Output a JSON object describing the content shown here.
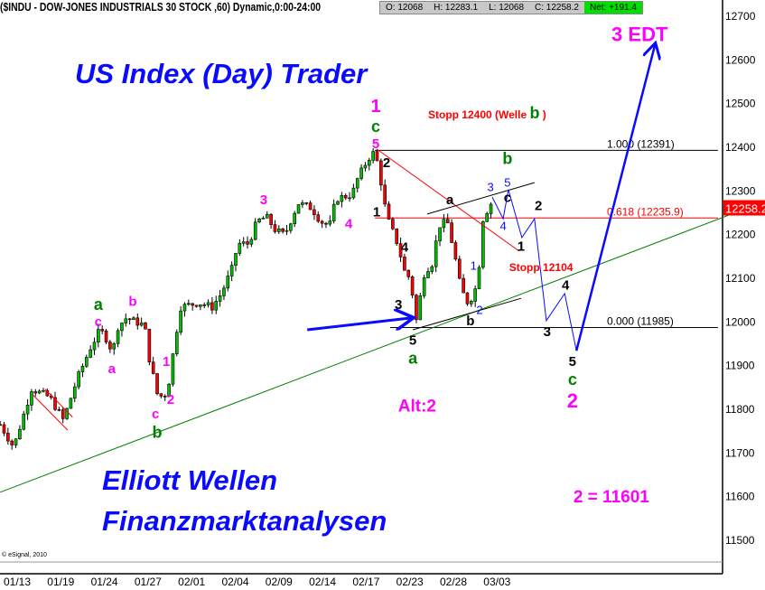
{
  "header": {
    "symbol_title": "($INDU - DOW-JONES INDUSTRIALS 30 STOCK ,60) Dynamic,0:00-24:00",
    "open": "O: 12068",
    "high": "H: 12283.1",
    "low": "L: 12068",
    "close": "C: 12258.2",
    "net": "Net: +191.4"
  },
  "titles": {
    "main": "US Index (Day) Trader",
    "line1": "Elliott Wellen",
    "line2": "Finanzmarktanalysen"
  },
  "copyright": "© eSignal, 2010",
  "colors": {
    "up": "#00c000",
    "down": "#ff0000",
    "trend": "#008000",
    "projection": "#0a0aff",
    "wave_magenta": "#ff00ff",
    "wave_green": "#008000",
    "price_tag": "#ff0000"
  },
  "chart_data": {
    "type": "candlestick",
    "x_tick_labels": [
      "01/13",
      "01/19",
      "01/24",
      "01/27",
      "02/01",
      "02/04",
      "02/09",
      "02/14",
      "02/17",
      "02/23",
      "02/28",
      "03/03"
    ],
    "y_ticks": [
      12700,
      12600,
      12500,
      12400,
      12300,
      12200,
      12100,
      12000,
      11900,
      11800,
      11700,
      11600,
      11500
    ],
    "ylim": [
      11460,
      12730
    ],
    "last_price": "12258.2",
    "price_path": [
      [
        -0.39,
        11763
      ],
      [
        -0.08,
        11711
      ],
      [
        0.33,
        11845
      ],
      [
        0.75,
        11825
      ],
      [
        1.06,
        11773
      ],
      [
        1.37,
        11866
      ],
      [
        1.68,
        11939
      ],
      [
        1.9,
        11980
      ],
      [
        2.05,
        11959
      ],
      [
        2.19,
        11928
      ],
      [
        2.3,
        11986
      ],
      [
        2.5,
        12007
      ],
      [
        2.92,
        11990
      ],
      [
        3.02,
        11918
      ],
      [
        3.23,
        11825
      ],
      [
        3.44,
        11835
      ],
      [
        3.64,
        11970
      ],
      [
        3.75,
        12032
      ],
      [
        4.16,
        12042
      ],
      [
        4.47,
        12032
      ],
      [
        4.68,
        12063
      ],
      [
        4.99,
        12135
      ],
      [
        5.03,
        12177
      ],
      [
        5.3,
        12177
      ],
      [
        5.5,
        12228
      ],
      [
        5.71,
        12239
      ],
      [
        5.92,
        12208
      ],
      [
        6.13,
        12197
      ],
      [
        6.44,
        12270
      ],
      [
        6.75,
        12259
      ],
      [
        6.96,
        12228
      ],
      [
        7.16,
        12218
      ],
      [
        7.31,
        12280
      ],
      [
        7.68,
        12290
      ],
      [
        7.78,
        12321
      ],
      [
        8.05,
        12373
      ],
      [
        8.2,
        12388
      ],
      [
        8.3,
        12342
      ],
      [
        8.47,
        12239
      ],
      [
        8.72,
        12177
      ],
      [
        8.88,
        12114
      ],
      [
        9.03,
        12094
      ],
      [
        9.13,
        11990
      ],
      [
        9.34,
        12114
      ],
      [
        9.54,
        12135
      ],
      [
        9.65,
        12218
      ],
      [
        9.86,
        12228
      ],
      [
        10.02,
        12156
      ],
      [
        10.17,
        12073
      ],
      [
        10.33,
        12042
      ],
      [
        10.48,
        12063
      ],
      [
        10.58,
        12114
      ],
      [
        10.65,
        12228
      ],
      [
        10.8,
        12259
      ],
      [
        10.9,
        12276
      ]
    ],
    "fib_levels": [
      {
        "label": "1.000 (12391)",
        "price": 12391,
        "from": 8.2,
        "color": "#000000"
      },
      {
        "label": "0.618 (12235.9)",
        "price": 12235.9,
        "from": 8.2,
        "color": "#ff0000"
      },
      {
        "label": "0.000 (11985)",
        "price": 11985,
        "from": 8.55,
        "color": "#000000"
      }
    ],
    "lines": [
      {
        "name": "trendline",
        "color": "#008000",
        "width": 1,
        "points": [
          [
            -0.39,
            11608
          ],
          [
            17.14,
            12274
          ]
        ]
      },
      {
        "name": "downtrend-line",
        "color": "#ff0000",
        "width": 1,
        "points": [
          [
            8.24,
            12394
          ],
          [
            11.51,
            12160
          ]
        ]
      },
      {
        "name": "upper-channel-line",
        "color": "#000000",
        "width": 1,
        "points": [
          [
            9.4,
            12245
          ],
          [
            11.86,
            12317
          ]
        ]
      },
      {
        "name": "lower-channel-line",
        "color": "#000000",
        "width": 1,
        "points": [
          [
            9.07,
            11980
          ],
          [
            11.55,
            12052
          ]
        ]
      },
      {
        "name": "left-channel-upper",
        "color": "#ff0000",
        "width": 1,
        "points": [
          [
            0.64,
            11844
          ],
          [
            1.27,
            11780
          ]
        ]
      },
      {
        "name": "left-channel-lower",
        "color": "#ff0000",
        "width": 1,
        "points": [
          [
            0.37,
            11830
          ],
          [
            1.16,
            11750
          ]
        ]
      },
      {
        "name": "projection-path",
        "color": "#0a0aff",
        "width": 1,
        "points": [
          [
            10.89,
            12284
          ],
          [
            11.14,
            12234
          ],
          [
            11.26,
            12301
          ],
          [
            11.57,
            12191
          ],
          [
            11.86,
            12234
          ],
          [
            12.13,
            12001
          ],
          [
            12.55,
            12063
          ],
          [
            12.82,
            11932
          ]
        ]
      },
      {
        "name": "projection-up-arrow",
        "color": "#0a0aff",
        "width": 2.5,
        "arrow": true,
        "points": [
          [
            12.82,
            11932
          ],
          [
            14.62,
            12632
          ]
        ]
      },
      {
        "name": "pointer-arrow",
        "color": "#0a0aff",
        "width": 3,
        "arrow": true,
        "points": [
          [
            6.65,
            11980
          ],
          [
            9.03,
            12007
          ]
        ]
      }
    ],
    "annotations": [
      {
        "text": "a",
        "color": "#008000",
        "x": 1.86,
        "p": 12038,
        "size": 18
      },
      {
        "text": "c",
        "color": "#ff00ff",
        "x": 1.86,
        "p": 12007,
        "size": 15
      },
      {
        "text": "a",
        "color": "#ff00ff",
        "x": 2.17,
        "p": 11891,
        "size": 15
      },
      {
        "text": "b",
        "color": "#ff00ff",
        "x": 2.65,
        "p": 12046,
        "size": 15
      },
      {
        "text": "1",
        "color": "#ff00ff",
        "x": 3.42,
        "p": 11908,
        "size": 15
      },
      {
        "text": "2",
        "color": "#ff00ff",
        "x": 3.52,
        "p": 11821,
        "size": 15
      },
      {
        "text": "c",
        "color": "#ff00ff",
        "x": 3.17,
        "p": 11788,
        "size": 15
      },
      {
        "text": "b",
        "color": "#008000",
        "x": 3.21,
        "p": 11746,
        "size": 18
      },
      {
        "text": "3",
        "color": "#ff00ff",
        "x": 5.65,
        "p": 12278,
        "size": 15
      },
      {
        "text": "4",
        "color": "#ff00ff",
        "x": 7.6,
        "p": 12224,
        "size": 15
      },
      {
        "text": "1",
        "color": "#ff00ff",
        "x": 8.22,
        "p": 12493,
        "size": 20
      },
      {
        "text": "c",
        "color": "#008000",
        "x": 8.22,
        "p": 12450,
        "size": 18
      },
      {
        "text": "5",
        "color": "#ff00ff",
        "x": 8.22,
        "p": 12412,
        "size": 15
      },
      {
        "text": "2",
        "color": "#000000",
        "x": 8.47,
        "p": 12363,
        "size": 15
      },
      {
        "text": "1",
        "color": "#000000",
        "x": 8.24,
        "p": 12251,
        "size": 15
      },
      {
        "text": "4",
        "color": "#000000",
        "x": 8.88,
        "p": 12170,
        "size": 15
      },
      {
        "text": "3",
        "color": "#000000",
        "x": 8.74,
        "p": 12038,
        "size": 15
      },
      {
        "text": "5",
        "color": "#000000",
        "x": 9.07,
        "p": 11957,
        "size": 15
      },
      {
        "text": "a",
        "color": "#008000",
        "x": 9.07,
        "p": 11928,
        "size": 18
      },
      {
        "text": "a",
        "color": "#000000",
        "x": 9.92,
        "p": 12278,
        "size": 15
      },
      {
        "text": "1",
        "color": "#0a0aff",
        "x": 10.46,
        "p": 12127,
        "size": 13,
        "normal": true
      },
      {
        "text": "2",
        "color": "#0a0aff",
        "x": 10.6,
        "p": 12026,
        "size": 13,
        "normal": true
      },
      {
        "text": "b",
        "color": "#000000",
        "x": 10.39,
        "p": 12001,
        "size": 15
      },
      {
        "text": "3",
        "color": "#0a0aff",
        "x": 10.85,
        "p": 12307,
        "size": 13,
        "normal": true
      },
      {
        "text": "5",
        "color": "#0a0aff",
        "x": 11.24,
        "p": 12317,
        "size": 13,
        "normal": true
      },
      {
        "text": "4",
        "color": "#0a0aff",
        "x": 11.14,
        "p": 12218,
        "size": 13,
        "normal": true
      },
      {
        "text": "b",
        "color": "#008000",
        "x": 11.24,
        "p": 12373,
        "size": 18
      },
      {
        "text": "c",
        "color": "#000000",
        "x": 11.24,
        "p": 12344,
        "size": 15
      },
      {
        "text": "2",
        "color": "#000000",
        "x": 11.95,
        "p": 12265,
        "size": 15
      },
      {
        "text": "1",
        "color": "#000000",
        "x": 11.55,
        "p": 12172,
        "size": 15
      },
      {
        "text": "4",
        "color": "#000000",
        "x": 12.57,
        "p": 12083,
        "size": 15
      },
      {
        "text": "3",
        "color": "#000000",
        "x": 12.15,
        "p": 11976,
        "size": 15
      },
      {
        "text": "5",
        "color": "#000000",
        "x": 12.73,
        "p": 11908,
        "size": 15
      },
      {
        "text": "c",
        "color": "#008000",
        "x": 12.73,
        "p": 11881,
        "size": 18
      },
      {
        "text": "2",
        "color": "#ff00ff",
        "x": 12.73,
        "p": 11833,
        "size": 22
      },
      {
        "text": "3 EDT",
        "color": "#ff00ff",
        "x": 14.27,
        "p": 12657,
        "size": 22
      },
      {
        "text": "Alt:2",
        "color": "#ff00ff",
        "x": 9.17,
        "p": 11806,
        "size": 19
      },
      {
        "text": "2 = 11601",
        "color": "#ff00ff",
        "x": 13.62,
        "p": 11599,
        "size": 19
      },
      {
        "text": "Stopp 12104",
        "color": "#ff0000",
        "x": 12.01,
        "p": 12123,
        "size": 12
      }
    ],
    "stop_note": {
      "prefix": "Stopp 12400 (Welle ",
      "wave": "b",
      "suffix": " )",
      "x": 9.42,
      "p": 12472
    }
  }
}
